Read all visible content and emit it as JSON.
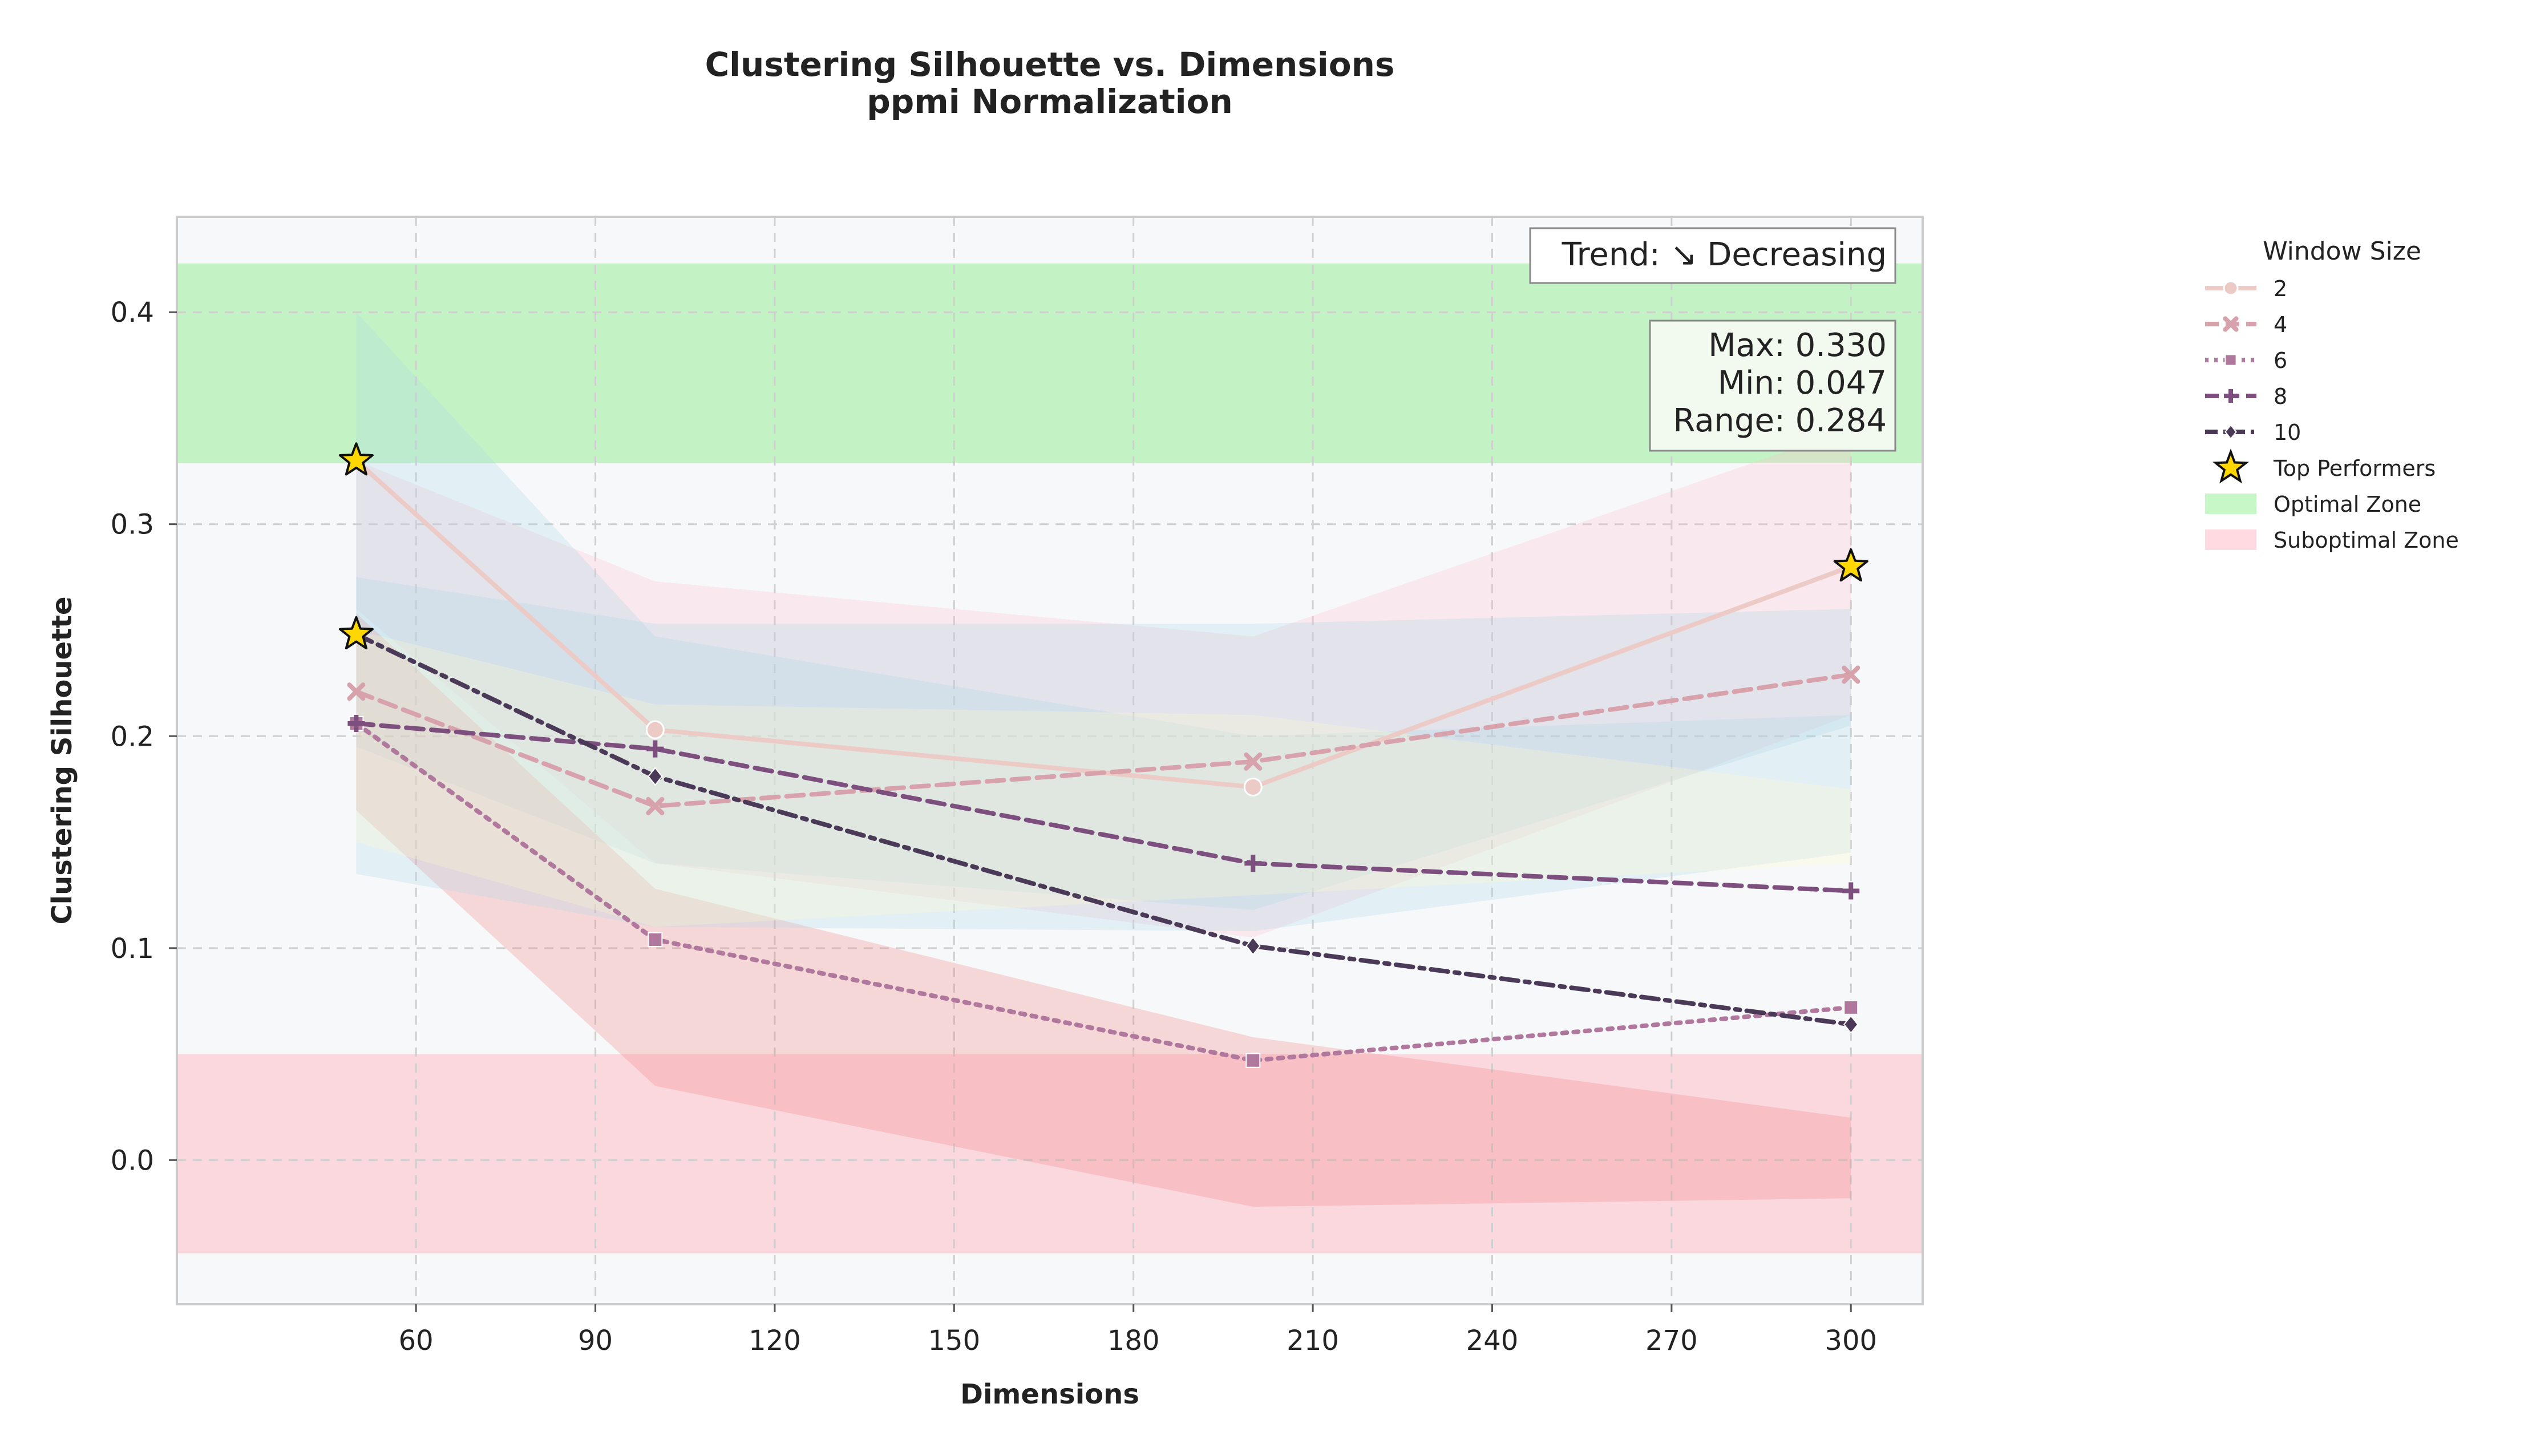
{
  "chart_data": {
    "type": "line",
    "title": "Clustering Silhouette vs. Dimensions",
    "subtitle": "ppmi Normalization",
    "xlabel": "Dimensions",
    "ylabel": "Clustering Silhouette",
    "xlim": [
      20,
      312
    ],
    "ylim": [
      -0.068,
      0.445
    ],
    "xticks": [
      60,
      90,
      120,
      150,
      180,
      210,
      240,
      270,
      300
    ],
    "yticks": [
      0.0,
      0.1,
      0.2,
      0.3,
      0.4
    ],
    "ytick_labels": [
      "0.0",
      "0.1",
      "0.2",
      "0.3",
      "0.4"
    ],
    "grid": true,
    "x": [
      50,
      100,
      200,
      300
    ],
    "legend_title": "Window Size",
    "legend_position": "outside-right",
    "series": [
      {
        "name": "2",
        "values": [
          0.33,
          0.203,
          0.176,
          0.28
        ],
        "color": "#eccac6",
        "dash": "solid",
        "marker": "circle",
        "band_upper": [
          0.33,
          0.273,
          0.247,
          0.345
        ],
        "band_lower": [
          0.26,
          0.14,
          0.105,
          0.21
        ],
        "band_color": "#ffc0cb"
      },
      {
        "name": "4",
        "values": [
          0.221,
          0.167,
          0.188,
          0.229
        ],
        "color": "#d7a2ac",
        "dash": "dashed",
        "marker": "x",
        "band_upper": [
          0.275,
          0.253,
          0.253,
          0.26
        ],
        "band_lower": [
          0.195,
          0.14,
          0.118,
          0.205
        ],
        "band_color": "#add8e6"
      },
      {
        "name": "6",
        "values": [
          0.206,
          0.104,
          0.047,
          0.072
        ],
        "color": "#b0789c",
        "dash": "dotted",
        "marker": "square",
        "band_upper": [
          0.258,
          0.128,
          0.058,
          0.02
        ],
        "band_lower": [
          0.165,
          0.035,
          -0.022,
          -0.018
        ],
        "band_color": "#f08080"
      },
      {
        "name": "8",
        "values": [
          0.206,
          0.194,
          0.14,
          0.127
        ],
        "color": "#7d4f7e",
        "dash": "dashed",
        "marker": "plus",
        "band_upper": [
          0.4,
          0.247,
          0.2,
          0.21
        ],
        "band_lower": [
          0.135,
          0.11,
          0.108,
          0.145
        ],
        "band_color": "#add8e6"
      },
      {
        "name": "10",
        "values": [
          0.248,
          0.181,
          0.101,
          0.064
        ],
        "color": "#4a3a57",
        "dash": "dashdot",
        "marker": "diamond",
        "band_upper": [
          0.25,
          0.215,
          0.21,
          0.175
        ],
        "band_lower": [
          0.15,
          0.11,
          0.125,
          0.14
        ],
        "band_color": "#fffacd"
      }
    ],
    "top_performers": {
      "name": "Top Performers",
      "points": [
        {
          "x": 50,
          "y": 0.33
        },
        {
          "x": 50,
          "y": 0.248
        },
        {
          "x": 300,
          "y": 0.28
        }
      ],
      "color": "#ffd700"
    },
    "optimal_zone": {
      "name": "Optimal Zone",
      "y_from": 0.329,
      "y_to": 0.423,
      "color": "#90ee90"
    },
    "suboptimal_zone": {
      "name": "Suboptimal Zone",
      "y_from": -0.044,
      "y_to": 0.05,
      "color": "#ffb6c1"
    },
    "annotations": {
      "trend": "Trend: ↘ Decreasing",
      "stats": [
        "Max: 0.330",
        "Min: 0.047",
        "Range: 0.284"
      ]
    }
  }
}
